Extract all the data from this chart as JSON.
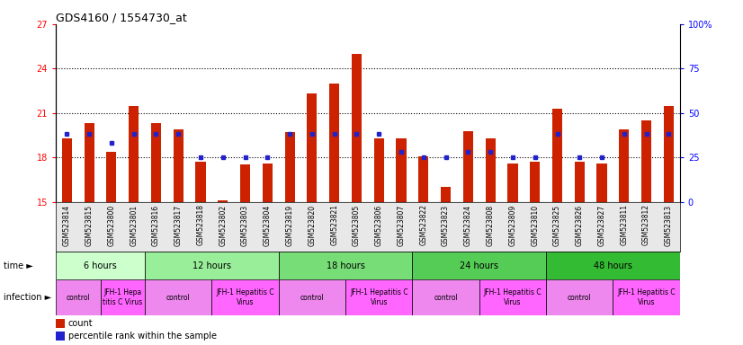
{
  "title": "GDS4160 / 1554730_at",
  "samples": [
    "GSM523814",
    "GSM523815",
    "GSM523800",
    "GSM523801",
    "GSM523816",
    "GSM523817",
    "GSM523818",
    "GSM523802",
    "GSM523803",
    "GSM523804",
    "GSM523819",
    "GSM523820",
    "GSM523821",
    "GSM523805",
    "GSM523806",
    "GSM523807",
    "GSM523822",
    "GSM523823",
    "GSM523824",
    "GSM523808",
    "GSM523809",
    "GSM523810",
    "GSM523825",
    "GSM523826",
    "GSM523827",
    "GSM523811",
    "GSM523812",
    "GSM523813"
  ],
  "counts": [
    19.3,
    20.3,
    18.4,
    21.5,
    20.3,
    19.9,
    17.7,
    15.1,
    17.5,
    17.6,
    19.7,
    22.3,
    23.0,
    25.0,
    19.3,
    19.3,
    18.1,
    16.0,
    19.8,
    19.3,
    17.6,
    17.7,
    21.3,
    17.7,
    17.6,
    19.9,
    20.5,
    21.5
  ],
  "percentiles": [
    38,
    38,
    33,
    38,
    38,
    38,
    25,
    25,
    25,
    25,
    38,
    38,
    38,
    38,
    38,
    28,
    25,
    25,
    28,
    28,
    25,
    25,
    38,
    25,
    25,
    38,
    38,
    38
  ],
  "ylim_left": [
    15,
    27
  ],
  "ylim_right": [
    0,
    100
  ],
  "yticks_left": [
    15,
    18,
    21,
    24,
    27
  ],
  "yticks_right": [
    0,
    25,
    50,
    75,
    100
  ],
  "bar_color": "#cc2200",
  "dot_color": "#2222cc",
  "time_groups": [
    {
      "label": "6 hours",
      "start": 0,
      "end": 4,
      "color": "#ccffcc"
    },
    {
      "label": "12 hours",
      "start": 4,
      "end": 10,
      "color": "#99ee99"
    },
    {
      "label": "18 hours",
      "start": 10,
      "end": 16,
      "color": "#77dd77"
    },
    {
      "label": "24 hours",
      "start": 16,
      "end": 22,
      "color": "#55cc55"
    },
    {
      "label": "48 hours",
      "start": 22,
      "end": 28,
      "color": "#33bb33"
    }
  ],
  "infection_groups": [
    {
      "label": "control",
      "start": 0,
      "end": 2,
      "color": "#ee88ee"
    },
    {
      "label": "JFH-1 Hepa\ntitis C Virus",
      "start": 2,
      "end": 4,
      "color": "#ff66ff"
    },
    {
      "label": "control",
      "start": 4,
      "end": 7,
      "color": "#ee88ee"
    },
    {
      "label": "JFH-1 Hepatitis C\nVirus",
      "start": 7,
      "end": 10,
      "color": "#ff66ff"
    },
    {
      "label": "control",
      "start": 10,
      "end": 13,
      "color": "#ee88ee"
    },
    {
      "label": "JFH-1 Hepatitis C\nVirus",
      "start": 13,
      "end": 16,
      "color": "#ff66ff"
    },
    {
      "label": "control",
      "start": 16,
      "end": 19,
      "color": "#ee88ee"
    },
    {
      "label": "JFH-1 Hepatitis C\nVirus",
      "start": 19,
      "end": 22,
      "color": "#ff66ff"
    },
    {
      "label": "control",
      "start": 22,
      "end": 25,
      "color": "#ee88ee"
    },
    {
      "label": "JFH-1 Hepatitis C\nVirus",
      "start": 25,
      "end": 28,
      "color": "#ff66ff"
    }
  ],
  "legend_count_label": "count",
  "legend_pct_label": "percentile rank within the sample"
}
